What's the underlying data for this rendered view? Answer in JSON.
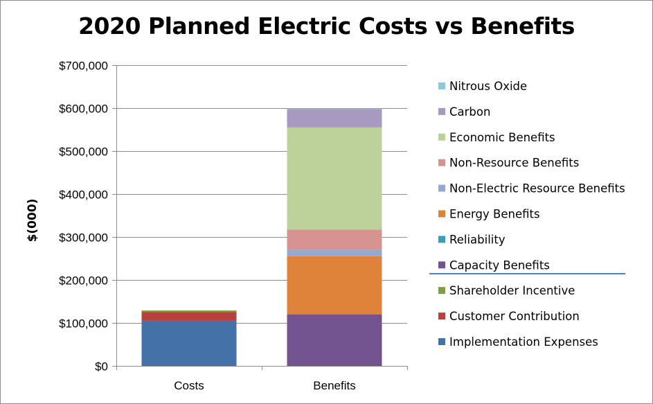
{
  "chart_data": {
    "type": "bar",
    "stacked": true,
    "title": "2020 Planned Electric Costs vs Benefits",
    "xlabel": "",
    "ylabel": "$(000)",
    "ylim": [
      0,
      700000
    ],
    "yticks": [
      0,
      100000,
      200000,
      300000,
      400000,
      500000,
      600000,
      700000
    ],
    "ytick_labels": [
      "$0",
      "$100,000",
      "$200,000",
      "$300,000",
      "$400,000",
      "$500,000",
      "$600,000",
      "$700,000"
    ],
    "categories": [
      "Costs",
      "Benefits"
    ],
    "grid": true,
    "legend_position": "right",
    "series": [
      {
        "name": "Implementation Expenses",
        "color": "#4472a8",
        "values": [
          105000,
          0
        ]
      },
      {
        "name": "Customer Contribution",
        "color": "#b9403e",
        "values": [
          20000,
          0
        ]
      },
      {
        "name": "Shareholder Incentive",
        "color": "#7ea03f",
        "values": [
          4000,
          0
        ]
      },
      {
        "name": "Capacity Benefits",
        "color": "#735491",
        "values": [
          0,
          120000
        ]
      },
      {
        "name": "Reliability",
        "color": "#3a9fb5",
        "values": [
          0,
          0
        ]
      },
      {
        "name": "Energy Benefits",
        "color": "#df833a",
        "values": [
          0,
          135000
        ]
      },
      {
        "name": "Non-Electric Resource Benefits",
        "color": "#93a9d1",
        "values": [
          0,
          15000
        ]
      },
      {
        "name": "Non-Resource Benefits",
        "color": "#d69392",
        "values": [
          0,
          47000
        ]
      },
      {
        "name": "Economic Benefits",
        "color": "#bdd19a",
        "values": [
          0,
          238000
        ]
      },
      {
        "name": "Carbon",
        "color": "#a899c1",
        "values": [
          0,
          43000
        ]
      },
      {
        "name": "Nitrous Oxide",
        "color": "#8ec9d8",
        "values": [
          0,
          1000
        ]
      }
    ]
  }
}
